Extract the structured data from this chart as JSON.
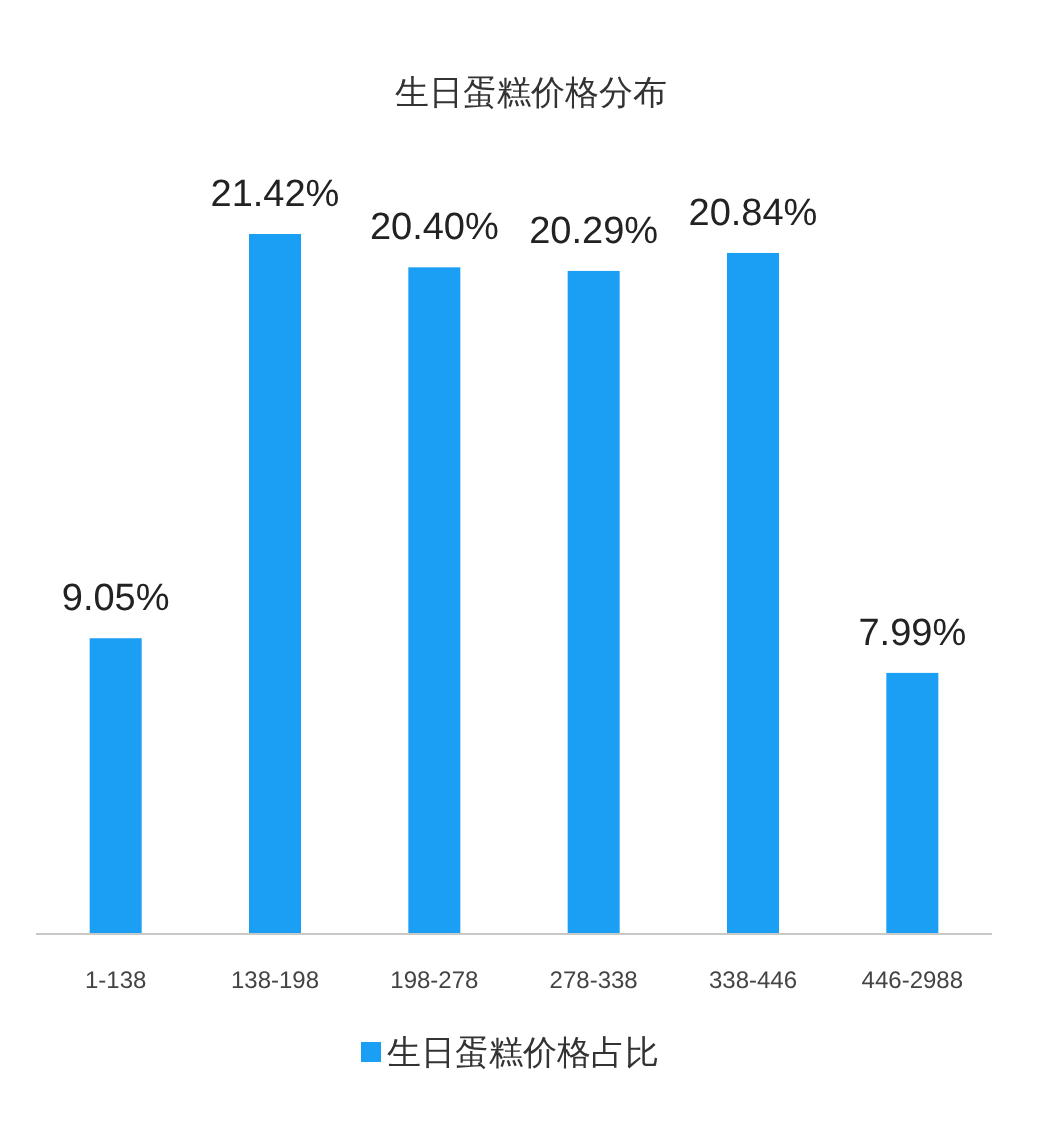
{
  "chart_data": {
    "type": "bar",
    "title": "生日蛋糕价格分布",
    "categories": [
      "1-138",
      "138-198",
      "198-278",
      "278-338",
      "338-446",
      "446-2988"
    ],
    "series": [
      {
        "name": "生日蛋糕价格占比",
        "color": "#1a9ff5",
        "values": [
          9.05,
          21.42,
          20.4,
          20.29,
          20.84,
          7.99
        ],
        "value_labels": [
          "9.05%",
          "21.42%",
          "20.40%",
          "20.29%",
          "20.84%",
          "7.99%"
        ]
      }
    ],
    "legend": "bottom"
  }
}
